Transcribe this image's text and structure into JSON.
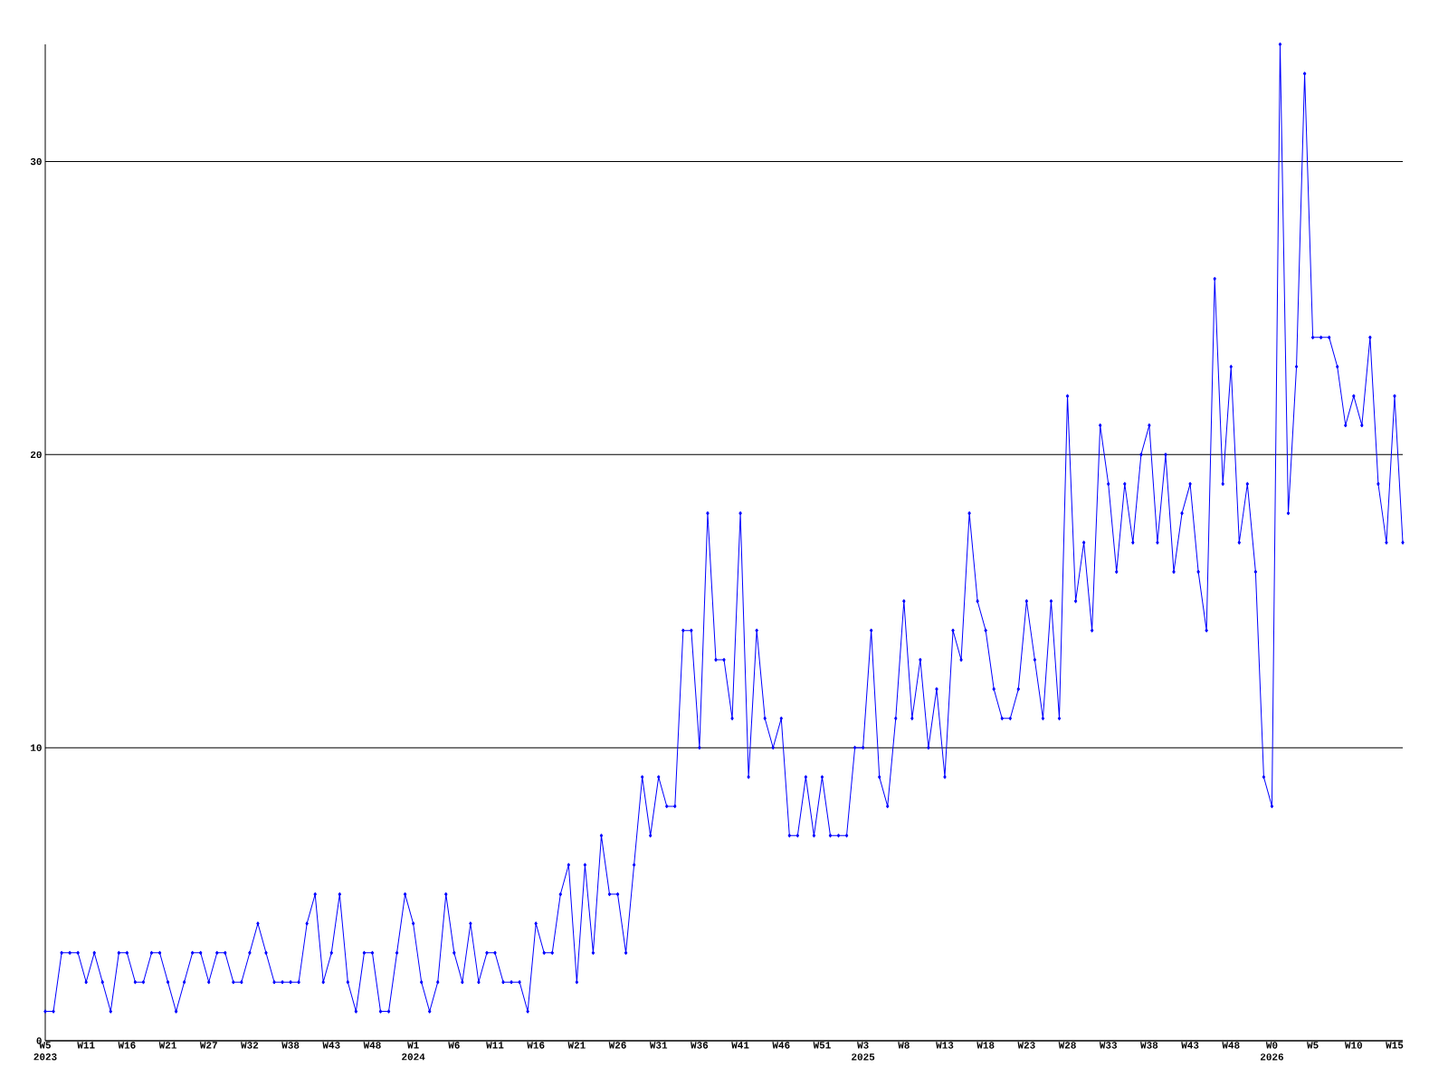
{
  "chart_data": {
    "type": "line",
    "categories": [
      "W5 2023",
      null,
      null,
      null,
      null,
      "W11",
      null,
      null,
      null,
      null,
      "W16",
      null,
      null,
      null,
      null,
      "W21",
      null,
      null,
      null,
      null,
      "W27",
      null,
      null,
      null,
      null,
      "W32",
      null,
      null,
      null,
      null,
      "W38",
      null,
      null,
      null,
      null,
      "W43",
      null,
      null,
      null,
      null,
      "W48",
      null,
      null,
      null,
      null,
      "W1 2024",
      null,
      null,
      null,
      null,
      "W6",
      null,
      null,
      null,
      null,
      "W11",
      null,
      null,
      null,
      null,
      "W16",
      null,
      null,
      null,
      null,
      "W21",
      null,
      null,
      null,
      null,
      "W26",
      null,
      null,
      null,
      null,
      "W31",
      null,
      null,
      null,
      null,
      "W36",
      null,
      null,
      null,
      null,
      "W41",
      null,
      null,
      null,
      null,
      "W46",
      null,
      null,
      null,
      null,
      "W51",
      null,
      null,
      null,
      null,
      "W3 2025",
      null,
      null,
      null,
      null,
      "W8",
      null,
      null,
      null,
      null,
      "W13",
      null,
      null,
      null,
      null,
      "W18",
      null,
      null,
      null,
      null,
      "W23",
      null,
      null,
      null,
      null,
      "W28",
      null,
      null,
      null,
      null,
      "W33",
      null,
      null,
      null,
      null,
      "W38",
      null,
      null,
      null,
      null,
      "W43",
      null,
      null,
      null,
      null,
      "W48",
      null,
      null,
      null,
      null,
      "W0 2026",
      null,
      null,
      null,
      null,
      "W5",
      null,
      null,
      null,
      null,
      "W10",
      null,
      null,
      null,
      null,
      "W15",
      null
    ],
    "values": [
      1,
      1,
      3,
      3,
      3,
      2,
      3,
      2,
      1,
      3,
      3,
      2,
      2,
      3,
      3,
      2,
      1,
      2,
      3,
      3,
      2,
      3,
      3,
      2,
      2,
      3,
      4,
      3,
      2,
      2,
      2,
      2,
      4,
      5,
      2,
      3,
      5,
      2,
      1,
      3,
      3,
      1,
      1,
      3,
      5,
      4,
      2,
      1,
      2,
      5,
      3,
      2,
      4,
      2,
      3,
      3,
      2,
      2,
      2,
      1,
      4,
      3,
      3,
      5,
      6,
      2,
      6,
      3,
      7,
      5,
      5,
      3,
      6,
      9,
      7,
      9,
      8,
      8,
      14,
      14,
      10,
      18,
      13,
      13,
      11,
      18,
      9,
      14,
      11,
      10,
      11,
      7,
      7,
      9,
      7,
      9,
      7,
      7,
      7,
      10,
      10,
      14,
      9,
      8,
      11,
      15,
      11,
      13,
      10,
      12,
      9,
      14,
      13,
      18,
      15,
      14,
      12,
      11,
      11,
      12,
      15,
      13,
      11,
      15,
      11,
      22,
      15,
      17,
      14,
      21,
      19,
      16,
      19,
      17,
      20,
      21,
      17,
      20,
      16,
      18,
      19,
      16,
      14,
      26,
      19,
      23,
      17,
      19,
      16,
      9,
      8,
      34,
      18,
      23,
      33,
      24,
      24,
      24,
      23,
      21,
      22,
      21,
      24,
      19,
      17,
      22,
      17
    ],
    "color": "#0000ff",
    "ylim": [
      0,
      34
    ],
    "yticks": [
      0,
      10,
      20,
      30
    ],
    "grid": "y",
    "marker": "diamond"
  }
}
